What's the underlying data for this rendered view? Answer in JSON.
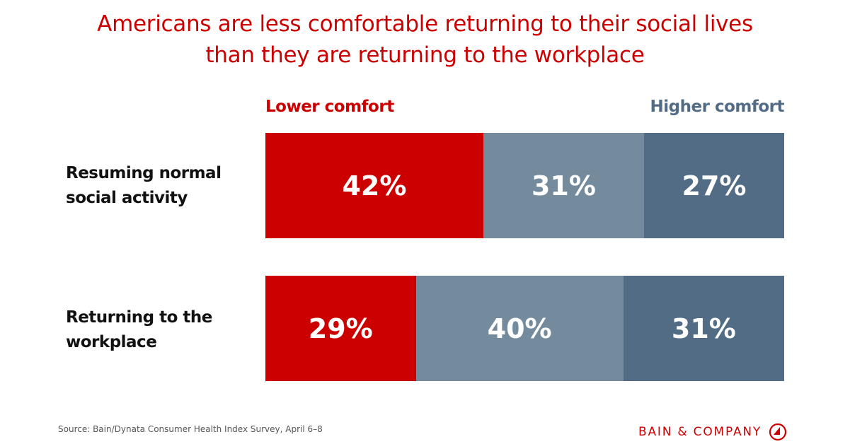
{
  "title_lines": [
    "Americans are less comfortable returning to their social lives",
    "than they are returning to the workplace"
  ],
  "source": "Source: Bain/Dynata Consumer Health Index Survey, April 6–8",
  "logo_text": "BAIN & COMPANY",
  "colors": {
    "title": "#cc0000",
    "low": "#cc0000",
    "mid": "#748a9d",
    "high": "#526c86"
  },
  "chart_data": {
    "type": "bar",
    "orientation": "horizontal",
    "stacked": true,
    "categories": [
      [
        "Resuming normal",
        "social activity"
      ],
      [
        "Returning to the",
        "workplace"
      ]
    ],
    "legend": {
      "left": "Lower comfort",
      "right": "Higher comfort"
    },
    "series": [
      {
        "values": [
          42,
          29
        ],
        "labels": [
          "42%",
          "29%"
        ],
        "color": "#cc0000"
      },
      {
        "values": [
          31,
          40
        ],
        "labels": [
          "31%",
          "40%"
        ],
        "color": "#748a9d"
      },
      {
        "values": [
          27,
          31
        ],
        "labels": [
          "27%",
          "31%"
        ],
        "color": "#526c86"
      }
    ],
    "xlim": [
      0,
      100
    ]
  }
}
